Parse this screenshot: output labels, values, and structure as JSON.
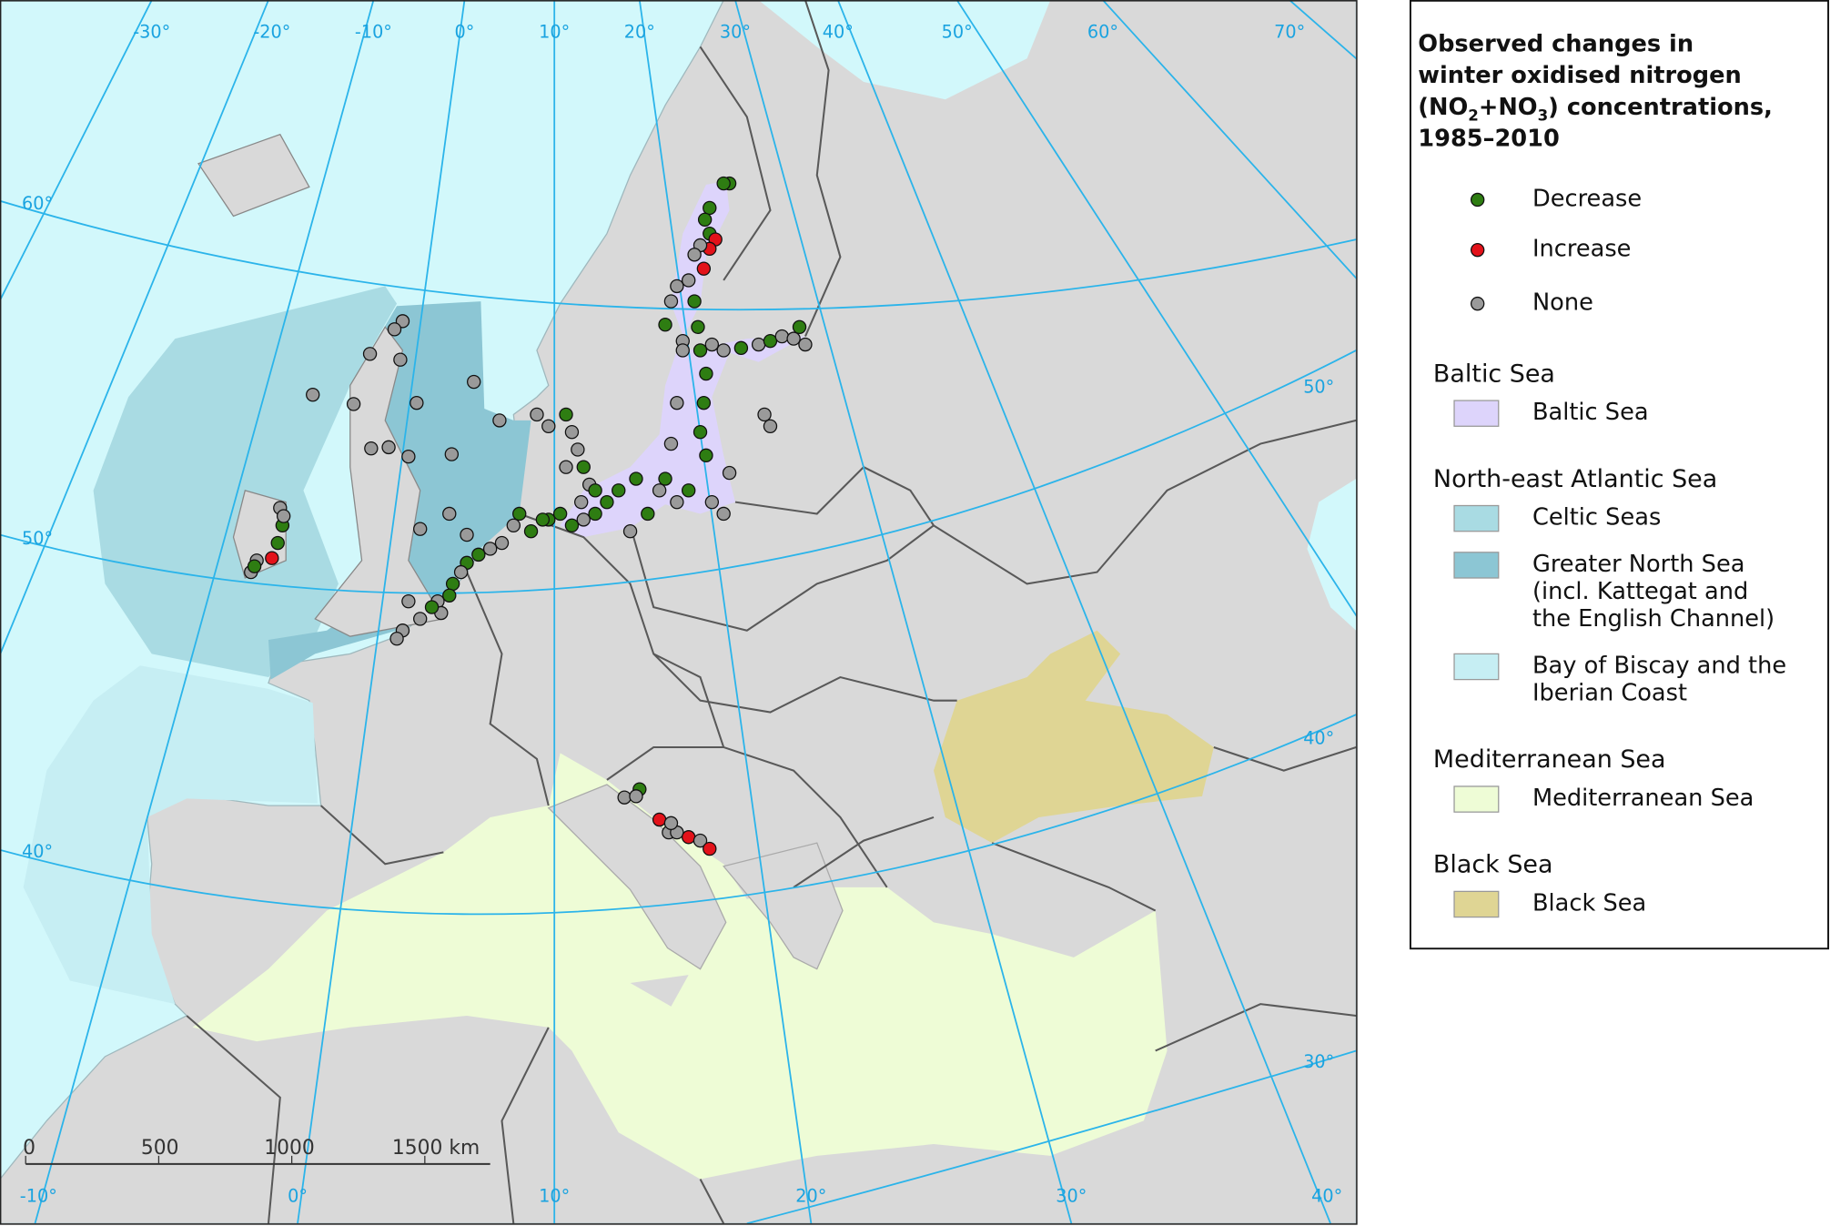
{
  "legend": {
    "title_lines": [
      "Observed changes in",
      "winter oxidised nitrogen",
      [
        "(NO",
        "2",
        "+NO",
        "3",
        ") concentrations,"
      ],
      "1985–2010"
    ],
    "markers": [
      {
        "label": "Decrease",
        "color": "#2e7d12"
      },
      {
        "label": "Increase",
        "color": "#e3121a"
      },
      {
        "label": "None",
        "color": "#9a9a9a"
      }
    ],
    "groups": [
      {
        "heading": "Baltic Sea",
        "items": [
          {
            "lines": [
              "Baltic Sea"
            ],
            "color": "#ddd4fb"
          }
        ]
      },
      {
        "heading": "North-east Atlantic Sea",
        "items": [
          {
            "lines": [
              "Celtic Seas"
            ],
            "color": "#a9dbe3"
          },
          {
            "lines": [
              "Greater North Sea",
              "(incl. Kattegat and",
              "the English Channel)"
            ],
            "color": "#8cc6d4"
          },
          {
            "lines": [
              "Bay of Biscay and the",
              "Iberian Coast"
            ],
            "color": "#c6eef3"
          }
        ]
      },
      {
        "heading": "Mediterranean Sea",
        "items": [
          {
            "lines": [
              "Mediterranean Sea"
            ],
            "color": "#eefcd6"
          }
        ]
      },
      {
        "heading": "Black Sea",
        "items": [
          {
            "lines": [
              "Black Sea"
            ],
            "color": "#dfd594"
          }
        ]
      }
    ]
  },
  "graticule_labels": {
    "top": [
      "-30°",
      "-20°",
      "-10°",
      "0°",
      "10°",
      "20°",
      "30°",
      "40°",
      "50°",
      "60°",
      "70°"
    ],
    "left": [
      "60°",
      "50°",
      "40°"
    ],
    "right": [
      "50°",
      "40°",
      "30°"
    ],
    "bottom": [
      "-10°",
      "0°",
      "10°",
      "20°",
      "30°",
      "40°"
    ]
  },
  "scale_bar": {
    "labels": [
      "0",
      "500",
      "1000",
      "1500 km"
    ]
  }
}
